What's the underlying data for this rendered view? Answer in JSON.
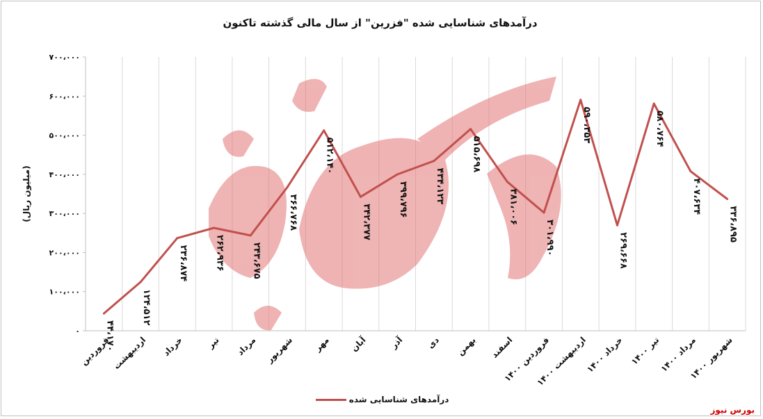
{
  "chart_data": {
    "type": "line",
    "title": "درآمدهای شناسایی شده \"فزرین\" از سال مالی گذشته تاکنون",
    "ylabel": "(میلیون ریال)",
    "ylim": [
      0,
      700000
    ],
    "yticks": [
      "۰",
      "۱۰۰،۰۰۰",
      "۲۰۰،۰۰۰",
      "۳۰۰،۰۰۰",
      "۴۰۰،۰۰۰",
      "۵۰۰،۰۰۰",
      "۶۰۰،۰۰۰",
      "۷۰۰،۰۰۰"
    ],
    "categories": [
      "فروردین",
      "اردیبهشت",
      "خرداد",
      "تیر",
      "مرداد",
      "شهریور",
      "مهر",
      "آبان",
      "آذر",
      "دی",
      "بهمن",
      "اسفند",
      "فروردین ۱۴۰۰",
      "اردیبهشت ۱۴۰۰",
      "خرداد ۱۴۰۰",
      "تیر ۱۴۰۰",
      "مرداد ۱۴۰۰",
      "شهریور ۱۴۰۰"
    ],
    "series": [
      {
        "name": "درآمدهای شناسایی شده",
        "color": "#c0504d",
        "values": [
          44170,
          124512,
          236874,
          262936,
          243675,
          366768,
          512140,
          342377,
          399796,
          434123,
          515698,
          381006,
          301990,
          590353,
          269668,
          580764,
          407634,
          336895
        ],
        "labels": [
          "۴۴،۱۷۰",
          "۱۲۴،۵۱۲",
          "۲۳۶،۸۷۴",
          "۲۶۲،۹۳۶",
          "۲۴۳،۶۷۵",
          "۳۶۶،۷۶۸",
          "۵۱۲،۱۴۰",
          "۳۴۲،۳۷۷",
          "۳۹۹،۷۹۶",
          "۴۳۴،۱۲۳",
          "۵۱۵،۶۹۸",
          "۳۸۱،۰۰۶",
          "۳۰۱،۹۹۰",
          "۵۹۰،۳۵۳",
          "۲۶۹،۶۶۸",
          "۵۸۰،۷۶۴",
          "۴۰۷،۶۳۴",
          "۳۳۶،۸۹۵"
        ]
      }
    ],
    "grid": "vertical",
    "legend": "bottom"
  },
  "source_label": "بورس نیوز"
}
